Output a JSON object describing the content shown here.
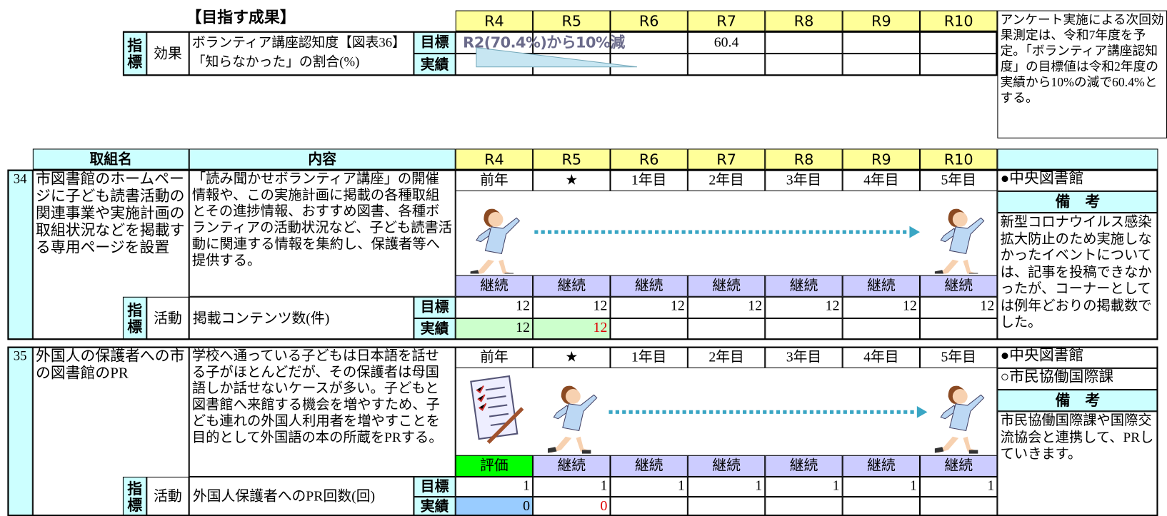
{
  "outcome": {
    "heading": "【目指す成果】",
    "years": [
      "R4",
      "R5",
      "R6",
      "R7",
      "R8",
      "R9",
      "R10"
    ],
    "indicator_mark": "指標",
    "kind": "効果",
    "label_lines": [
      "ボランティア講座認知度【図表36】",
      "「知らなかった」の割合(%)"
    ],
    "target_label": "目標",
    "actual_label": "実績",
    "callout": "R2(70.4%)から10%減",
    "target_values": [
      null,
      null,
      null,
      "60.4",
      null,
      null,
      null
    ],
    "note": "アンケート実施による次回効果測定は、令和7年度を予定。「ボランティア講座認知度」の目標値は令和2年度の実績から10%の減で60.4%とする。"
  },
  "table": {
    "headers": [
      "取組名",
      "内容"
    ],
    "years": [
      "R4",
      "R5",
      "R6",
      "R7",
      "R8",
      "R9",
      "R10"
    ],
    "rows": [
      {
        "no": "34",
        "name": "市図書館のホームページに子ども読書活動の関連事業や実施計画の取組状況などを掲載する専用ページを設置",
        "content": "「読み聞かせボランティア講座」の開催情報や、この実施計画に掲載の各種取組とその進捗情報、おすすめ図書、各種ボランティアの活動状況など、子ども読書活動に関連する情報を集約し、保護者等へ提供する。",
        "stages": [
          "前年",
          "★",
          "1年目",
          "2年目",
          "3年目",
          "4年目",
          "5年目"
        ],
        "status": [
          "継続",
          "継続",
          "継続",
          "継続",
          "継続",
          "継続",
          "継続"
        ],
        "status_fills": [
          "#ccccff",
          "#ccccff",
          "#ccccff",
          "#ccccff",
          "#ccccff",
          "#ccccff",
          "#ccccff"
        ],
        "dept": [
          "●中央図書館"
        ],
        "remarks_label": "備　考",
        "remarks": "新型コロナウイルス感染拡大防止のため実施しなかったイベントについては、記事を投稿できなかったが、コーナーとしては例年どおりの掲載数でした。",
        "indicator_mark": "指標",
        "kind": "活動",
        "indicator": "掲載コンテンツ数(件)",
        "target_label": "目標",
        "actual_label": "実績",
        "targets": [
          "12",
          "12",
          "12",
          "12",
          "12",
          "12",
          "12"
        ],
        "actuals": [
          "12",
          "12"
        ],
        "actual_fills": [
          "#ccffcc",
          "#ccffcc"
        ],
        "actual_text_colors": [
          "#000000",
          "#dd0000"
        ]
      },
      {
        "no": "35",
        "name": "外国人の保護者への市の図書館のPR",
        "content": "学校へ通っている子どもは日本語を話せる子がほとんどだが、その保護者は母国語しか話せないケースが多い。子どもと図書館へ来館する機会を増やすため、子ども連れの外国人利用者を増やすことを目的として外国語の本の所蔵をPRする。",
        "stages": [
          "前年",
          "★",
          "1年目",
          "2年目",
          "3年目",
          "4年目",
          "5年目"
        ],
        "status": [
          "評価",
          "継続",
          "継続",
          "継続",
          "継続",
          "継続",
          "継続"
        ],
        "status_fills": [
          "#00ff00",
          "#ccccff",
          "#ccccff",
          "#ccccff",
          "#ccccff",
          "#ccccff",
          "#ccccff"
        ],
        "dept": [
          "●中央図書館",
          "○市民協働国際課"
        ],
        "remarks_label": "備　考",
        "remarks": "市民協働国際課や国際交流協会と連携して、PRしていきます。",
        "indicator_mark": "指標",
        "kind": "活動",
        "indicator": "外国人保護者へのPR回数(回)",
        "target_label": "目標",
        "actual_label": "実績",
        "targets": [
          "1",
          "1",
          "1",
          "1",
          "1",
          "1",
          "1"
        ],
        "actuals": [
          "0",
          "0"
        ],
        "actual_fills": [
          "#99ccff",
          "#ffffff"
        ],
        "actual_text_colors": [
          "#000000",
          "#dd0000"
        ]
      }
    ]
  }
}
